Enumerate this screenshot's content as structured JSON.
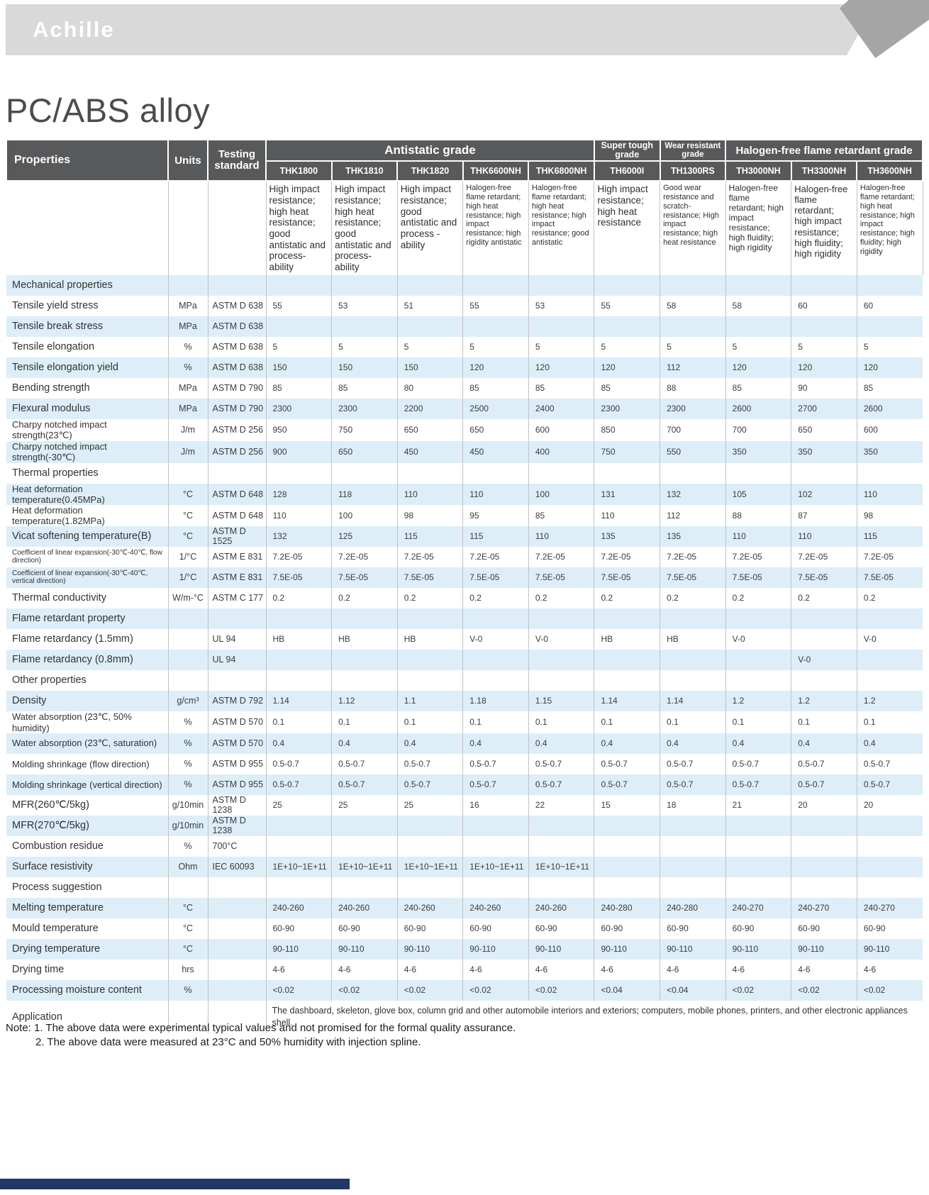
{
  "colors": {
    "header_bg": "#58595b",
    "row_alt": "#ddeef8",
    "banner": "#d9d9d9",
    "footer_bar": "#1f3864",
    "ribbon": "#a5a5a5"
  },
  "brand": "Achille",
  "page_title": "PC/ABS alloy",
  "table": {
    "col_headers": {
      "properties": "Properties",
      "units": "Units",
      "testing": "Testing standard"
    },
    "groups": [
      {
        "label": "Antistatic grade",
        "span": 5
      },
      {
        "label": "Super tough grade",
        "span": 1
      },
      {
        "label": "Wear resistant grade",
        "span": 1
      },
      {
        "label": "Halogen-free flame retardant grade",
        "span": 3
      }
    ],
    "grades": [
      "THK1800",
      "THK1810",
      "THK1820",
      "THK6600NH",
      "THK6800NH",
      "TH6000I",
      "TH1300RS",
      "TH3000NH",
      "TH3300NH",
      "TH3600NH"
    ],
    "descriptions": [
      "High impact resistance; high heat resistance; good antistatic and process-ability",
      "High impact resistance; high heat resistance; good antistatic and process-ability",
      "High impact resistance; good antistatic and process -ability",
      "Halogen-free flame retardant; high heat resistance; high impact resistance; high rigidity antistatic",
      "Halogen-free flame retardant; high heat resistance; high impact resistance; good antistatic",
      "High impact resistance; high heat resistance",
      "Good wear resistance and scratch-resistance; High impact resistance; high heat resistance",
      "Halogen-free flame retardant; high impact resistance; high fluidity; high rigidity",
      "Halogen-free flame retardant; high impact resistance; high fluidity; high rigidity",
      "Halogen-free flame retardant; high heat resistance; high impact resistance; high fluidity; high rigidity"
    ],
    "rows": [
      {
        "section": "Mechanical properties"
      },
      {
        "label": "Tensile yield stress",
        "unit": "MPa",
        "standard": "ASTM D 638",
        "values": [
          "55",
          "53",
          "51",
          "55",
          "53",
          "55",
          "58",
          "58",
          "60",
          "60"
        ]
      },
      {
        "label": "Tensile break stress",
        "unit": "MPa",
        "standard": "ASTM D 638",
        "values": [
          "",
          "",
          "",
          "",
          "",
          "",
          "",
          "",
          "",
          ""
        ]
      },
      {
        "label": "Tensile elongation",
        "unit": "%",
        "standard": "ASTM D 638",
        "values": [
          "5",
          "5",
          "5",
          "5",
          "5",
          "5",
          "5",
          "5",
          "5",
          "5"
        ]
      },
      {
        "label": "Tensile elongation yield",
        "unit": "%",
        "standard": "ASTM D 638",
        "values": [
          "150",
          "150",
          "150",
          "120",
          "120",
          "120",
          "112",
          "120",
          "120",
          "120"
        ]
      },
      {
        "label": "Bending strength",
        "unit": "MPa",
        "standard": "ASTM D 790",
        "values": [
          "85",
          "85",
          "80",
          "85",
          "85",
          "85",
          "88",
          "85",
          "90",
          "85"
        ]
      },
      {
        "label": "Flexural modulus",
        "unit": "MPa",
        "standard": "ASTM D 790",
        "values": [
          "2300",
          "2300",
          "2200",
          "2500",
          "2400",
          "2300",
          "2300",
          "2600",
          "2700",
          "2600"
        ]
      },
      {
        "label": "Charpy notched impact strength(23℃)",
        "unit": "J/m",
        "standard": "ASTM D 256",
        "values": [
          "950",
          "750",
          "650",
          "650",
          "600",
          "850",
          "700",
          "700",
          "650",
          "600"
        ]
      },
      {
        "label": "Charpy notched impact strength(-30℃)",
        "unit": "J/m",
        "standard": "ASTM D 256",
        "values": [
          "900",
          "650",
          "450",
          "450",
          "400",
          "750",
          "550",
          "350",
          "350",
          "350"
        ]
      },
      {
        "section": "Thermal properties"
      },
      {
        "label": "Heat deformation temperature(0.45MPa)",
        "unit": "°C",
        "standard": "ASTM D 648",
        "values": [
          "128",
          "118",
          "110",
          "110",
          "100",
          "131",
          "132",
          "105",
          "102",
          "110"
        ]
      },
      {
        "label": "Heat deformation temperature(1.82MPa)",
        "unit": "°C",
        "standard": "ASTM D 648",
        "values": [
          "110",
          "100",
          "98",
          "95",
          "85",
          "110",
          "112",
          "88",
          "87",
          "98"
        ]
      },
      {
        "label": "Vicat softening temperature(B)",
        "unit": "°C",
        "standard": "ASTM D 1525",
        "values": [
          "132",
          "125",
          "115",
          "115",
          "110",
          "135",
          "135",
          "110",
          "110",
          "115"
        ]
      },
      {
        "label": "Coefficient of linear expansion(-30℃-40℃, flow direction)",
        "unit": "1/°C",
        "standard": "ASTM E 831",
        "values": [
          "7.2E-05",
          "7.2E-05",
          "7.2E-05",
          "7.2E-05",
          "7.2E-05",
          "7.2E-05",
          "7.2E-05",
          "7.2E-05",
          "7.2E-05",
          "7.2E-05"
        ]
      },
      {
        "label": "Coefficient of linear expansion(-30℃-40℃, vertical direction)",
        "unit": "1/°C",
        "standard": "ASTM E 831",
        "values": [
          "7.5E-05",
          "7.5E-05",
          "7.5E-05",
          "7.5E-05",
          "7.5E-05",
          "7.5E-05",
          "7.5E-05",
          "7.5E-05",
          "7.5E-05",
          "7.5E-05"
        ]
      },
      {
        "label": "Thermal conductivity",
        "unit": "W/m-°C",
        "standard": "ASTM C 177",
        "values": [
          "0.2",
          "0.2",
          "0.2",
          "0.2",
          "0.2",
          "0.2",
          "0.2",
          "0.2",
          "0.2",
          "0.2"
        ]
      },
      {
        "section": "Flame retardant property"
      },
      {
        "label": "Flame retardancy (1.5mm)",
        "unit": "",
        "standard": "UL 94",
        "values": [
          "HB",
          "HB",
          "HB",
          "V-0",
          "V-0",
          "HB",
          "HB",
          "V-0",
          "",
          "V-0"
        ]
      },
      {
        "label": "Flame retardancy (0.8mm)",
        "unit": "",
        "standard": "UL 94",
        "values": [
          "",
          "",
          "",
          "",
          "",
          "",
          "",
          "",
          "V-0",
          ""
        ]
      },
      {
        "section": "Other properties"
      },
      {
        "label": "Density",
        "unit": "g/cm³",
        "standard": "ASTM D 792",
        "values": [
          "1.14",
          "1.12",
          "1.1",
          "1.18",
          "1.15",
          "1.14",
          "1.14",
          "1.2",
          "1.2",
          "1.2"
        ]
      },
      {
        "label": "Water absorption (23℃, 50% humidity)",
        "unit": "%",
        "standard": "ASTM D 570",
        "values": [
          "0.1",
          "0.1",
          "0.1",
          "0.1",
          "0.1",
          "0.1",
          "0.1",
          "0.1",
          "0.1",
          "0.1"
        ]
      },
      {
        "label": "Water absorption (23℃, saturation)",
        "unit": "%",
        "standard": "ASTM D 570",
        "values": [
          "0.4",
          "0.4",
          "0.4",
          "0.4",
          "0.4",
          "0.4",
          "0.4",
          "0.4",
          "0.4",
          "0.4"
        ]
      },
      {
        "label": "Molding shrinkage (flow direction)",
        "unit": "%",
        "standard": "ASTM D 955",
        "values": [
          "0.5-0.7",
          "0.5-0.7",
          "0.5-0.7",
          "0.5-0.7",
          "0.5-0.7",
          "0.5-0.7",
          "0.5-0.7",
          "0.5-0.7",
          "0.5-0.7",
          "0.5-0.7"
        ]
      },
      {
        "label": "Molding shrinkage (vertical direction)",
        "unit": "%",
        "standard": "ASTM D 955",
        "values": [
          "0.5-0.7",
          "0.5-0.7",
          "0.5-0.7",
          "0.5-0.7",
          "0.5-0.7",
          "0.5-0.7",
          "0.5-0.7",
          "0.5-0.7",
          "0.5-0.7",
          "0.5-0.7"
        ]
      },
      {
        "label": "MFR(260℃/5kg)",
        "unit": "g/10min",
        "standard": "ASTM D 1238",
        "values": [
          "25",
          "25",
          "25",
          "16",
          "22",
          "15",
          "18",
          "21",
          "20",
          "20"
        ]
      },
      {
        "label": "MFR(270℃/5kg)",
        "unit": "g/10min",
        "standard": "ASTM D 1238",
        "values": [
          "",
          "",
          "",
          "",
          "",
          "",
          "",
          "",
          "",
          ""
        ]
      },
      {
        "label": "Combustion residue",
        "unit": "%",
        "standard": "700°C",
        "values": [
          "",
          "",
          "",
          "",
          "",
          "",
          "",
          "",
          "",
          ""
        ]
      },
      {
        "label": "Surface resistivity",
        "unit": "Ohm",
        "standard": "IEC 60093",
        "values": [
          "1E+10~1E+11",
          "1E+10~1E+11",
          "1E+10~1E+11",
          "1E+10~1E+11",
          "1E+10~1E+11",
          "",
          "",
          "",
          "",
          ""
        ]
      },
      {
        "section": "Process suggestion"
      },
      {
        "label": "Melting temperature",
        "unit": "°C",
        "standard": "",
        "values": [
          "240-260",
          "240-260",
          "240-260",
          "240-260",
          "240-260",
          "240-280",
          "240-280",
          "240-270",
          "240-270",
          "240-270"
        ]
      },
      {
        "label": "Mould temperature",
        "unit": "°C",
        "standard": "",
        "values": [
          "60-90",
          "60-90",
          "60-90",
          "60-90",
          "60-90",
          "60-90",
          "60-90",
          "60-90",
          "60-90",
          "60-90"
        ]
      },
      {
        "label": "Drying temperature",
        "unit": "°C",
        "standard": "",
        "values": [
          "90-110",
          "90-110",
          "90-110",
          "90-110",
          "90-110",
          "90-110",
          "90-110",
          "90-110",
          "90-110",
          "90-110"
        ]
      },
      {
        "label": "Drying time",
        "unit": "hrs",
        "standard": "",
        "values": [
          "4-6",
          "4-6",
          "4-6",
          "4-6",
          "4-6",
          "4-6",
          "4-6",
          "4-6",
          "4-6",
          "4-6"
        ]
      },
      {
        "label": "Processing moisture content",
        "unit": "%",
        "standard": "",
        "values": [
          "<0.02",
          "<0.02",
          "<0.02",
          "<0.02",
          "<0.02",
          "<0.04",
          "<0.04",
          "<0.02",
          "<0.02",
          "<0.02"
        ]
      },
      {
        "label": "Application",
        "span_text": "The dashboard, skeleton, glove box, column grid and other automobile interiors and exteriors; computers, mobile phones, printers, and other electronic appliances shell."
      }
    ]
  },
  "notes": {
    "line1": "Note: 1. The above data were experimental typical values and not promised for the formal quality assurance.",
    "line2": "2. The above data were measured at 23°C and 50% humidity with injection spline."
  }
}
